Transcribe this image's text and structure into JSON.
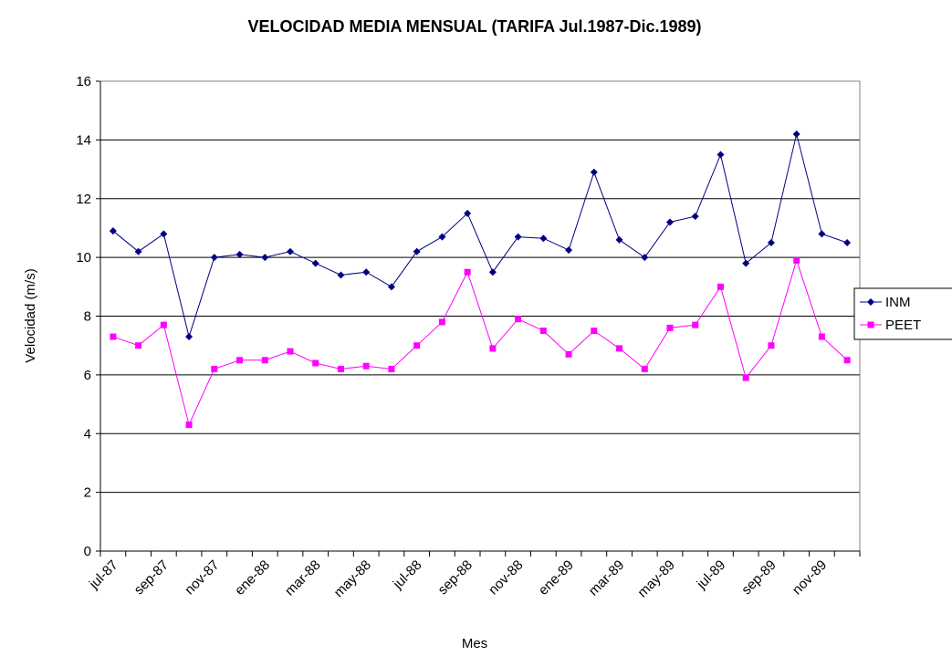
{
  "chart_data": {
    "type": "line",
    "title": "VELOCIDAD MEDIA MENSUAL (TARIFA Jul.1987-Dic.1989)",
    "x_label": "Mes",
    "y_label": "Velocidad (m/s)",
    "categories": [
      "jul-87",
      null,
      "sep-87",
      null,
      "nov-87",
      null,
      "ene-88",
      null,
      "mar-88",
      null,
      "may-88",
      null,
      "jul-88",
      null,
      "sep-88",
      null,
      "nov-88",
      null,
      "ene-89",
      null,
      "mar-89",
      null,
      "may-89",
      null,
      "jul-89",
      null,
      "sep-89",
      null,
      "nov-89",
      null
    ],
    "series": [
      {
        "name": "INM",
        "color": "#000080",
        "marker": "diamond",
        "values": [
          10.9,
          10.2,
          10.8,
          7.3,
          10.0,
          10.1,
          10.0,
          10.2,
          9.8,
          9.4,
          9.5,
          9.0,
          10.2,
          10.7,
          11.5,
          9.5,
          10.7,
          10.65,
          10.25,
          12.9,
          10.6,
          10.0,
          11.2,
          11.4,
          13.5,
          9.8,
          10.5,
          14.2,
          10.8,
          10.5
        ]
      },
      {
        "name": "PEET",
        "color": "#ff00ff",
        "marker": "square",
        "values": [
          7.3,
          7.0,
          7.7,
          4.3,
          6.2,
          6.5,
          6.5,
          6.8,
          6.4,
          6.2,
          6.3,
          6.2,
          7.0,
          7.8,
          9.5,
          6.9,
          7.9,
          7.5,
          6.7,
          7.5,
          6.9,
          6.2,
          7.6,
          7.7,
          9.0,
          5.9,
          7.0,
          9.9,
          7.3,
          6.5
        ]
      }
    ],
    "ylim": [
      0,
      16
    ],
    "yticks": [
      0,
      2,
      4,
      6,
      8,
      10,
      12,
      14,
      16
    ],
    "grid": true,
    "legend": "right"
  }
}
